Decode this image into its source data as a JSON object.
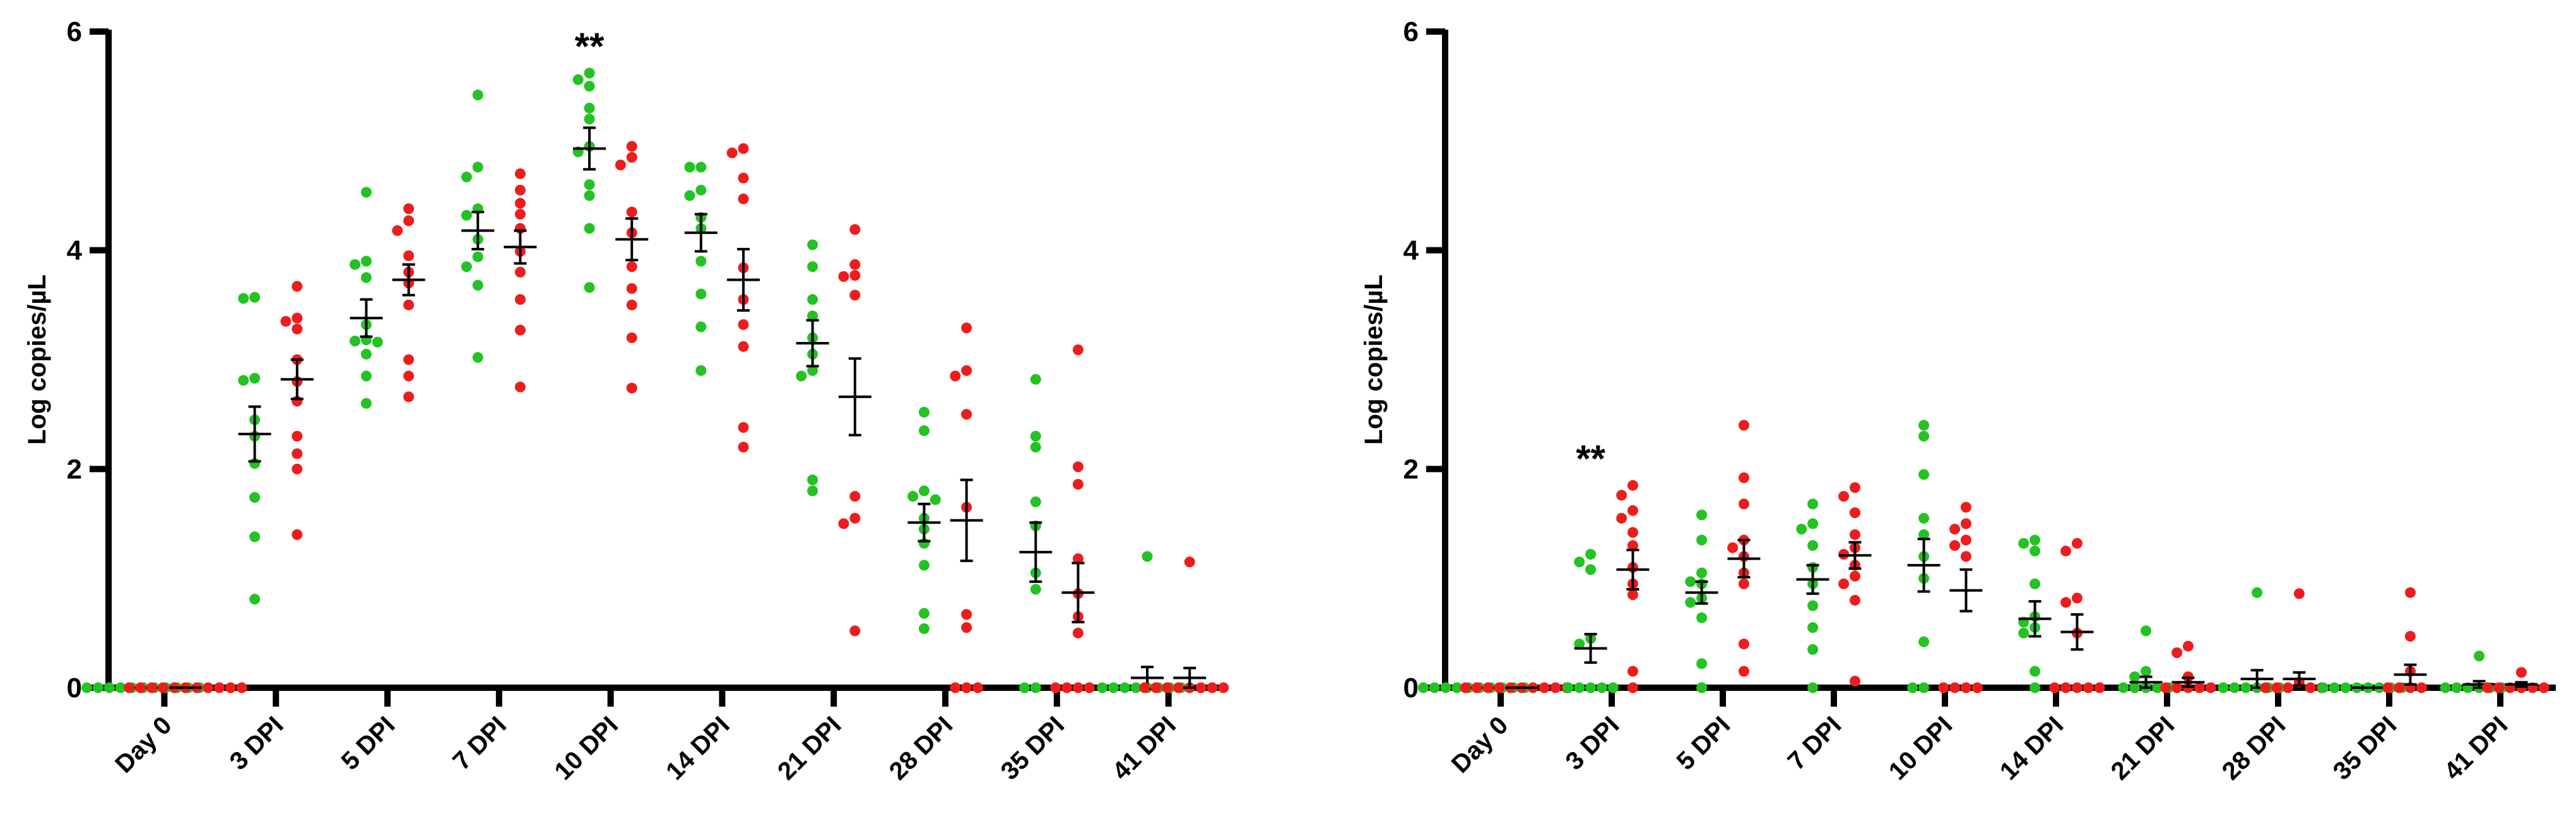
{
  "colors": {
    "green": "#22c322",
    "red": "#ee1c1c",
    "axis": "#000000"
  },
  "chart_data": [
    {
      "type": "scatter",
      "title": "",
      "ylabel": "Log copies/µL",
      "xlabel": "",
      "ylim": [
        0,
        6
      ],
      "yticks": [
        0,
        2,
        4,
        6
      ],
      "categories": [
        "Day 0",
        "3 DPI",
        "5 DPI",
        "7 DPI",
        "10 DPI",
        "14 DPI",
        "21 DPI",
        "28 DPI",
        "35 DPI",
        "41 DPI"
      ],
      "significance": [
        {
          "category": "10 DPI",
          "label": "**"
        }
      ],
      "series": [
        {
          "name": "green",
          "means": [
            0,
            2.32,
            3.38,
            4.18,
            4.93,
            4.16,
            3.15,
            1.51,
            1.24,
            0.09
          ],
          "sems": [
            0,
            0.25,
            0.17,
            0.17,
            0.19,
            0.17,
            0.21,
            0.17,
            0.27,
            0.1
          ],
          "points": [
            [
              0,
              0,
              0,
              0,
              0,
              0,
              0,
              0,
              0,
              0,
              0,
              0
            ],
            [
              3.57,
              3.56,
              2.83,
              2.81,
              2.45,
              2.3,
              2.05,
              1.74,
              1.38,
              0.81
            ],
            [
              4.53,
              3.9,
              3.87,
              3.75,
              3.32,
              3.18,
              3.17,
              3.16,
              3.05,
              2.85,
              2.6
            ],
            [
              5.42,
              4.76,
              4.67,
              4.38,
              4.32,
              4.1,
              3.94,
              3.85,
              3.68,
              3.02
            ],
            [
              5.62,
              5.56,
              5.5,
              5.3,
              5.2,
              4.95,
              4.9,
              4.6,
              4.5,
              4.2,
              3.66
            ],
            [
              4.76,
              4.76,
              4.55,
              4.5,
              4.3,
              4.2,
              3.9,
              3.6,
              3.3,
              2.9
            ],
            [
              4.05,
              3.85,
              3.55,
              3.4,
              3.2,
              3.05,
              2.9,
              2.85,
              1.9,
              1.8
            ],
            [
              2.52,
              2.35,
              1.8,
              1.75,
              1.72,
              1.55,
              1.45,
              1.32,
              1.12,
              0.68,
              0.54
            ],
            [
              2.82,
              2.3,
              2.2,
              1.7,
              1.48,
              1.05,
              0.9,
              0,
              0
            ],
            [
              1.2,
              0,
              0,
              0,
              0,
              0,
              0,
              0,
              0
            ]
          ]
        },
        {
          "name": "red",
          "means": [
            0,
            2.82,
            3.73,
            4.03,
            4.1,
            3.73,
            2.66,
            1.53,
            0.87,
            0.09
          ],
          "sems": [
            0,
            0.18,
            0.14,
            0.15,
            0.19,
            0.28,
            0.35,
            0.37,
            0.27,
            0.09
          ],
          "points": [
            [
              0,
              0,
              0,
              0,
              0,
              0,
              0,
              0,
              0,
              0,
              0,
              0
            ],
            [
              3.67,
              3.38,
              3.35,
              3.28,
              3.0,
              2.8,
              2.62,
              2.3,
              2.14,
              2.0,
              1.4
            ],
            [
              4.38,
              4.27,
              4.18,
              3.95,
              3.8,
              3.7,
              3.5,
              3.0,
              2.85,
              2.66
            ],
            [
              4.7,
              4.55,
              4.43,
              4.33,
              4.2,
              3.99,
              3.8,
              3.55,
              3.27,
              2.75
            ],
            [
              4.95,
              4.85,
              4.78,
              4.35,
              4.16,
              3.85,
              3.65,
              3.5,
              3.2,
              2.74
            ],
            [
              4.93,
              4.89,
              4.66,
              4.47,
              3.84,
              3.55,
              3.32,
              3.12,
              2.38,
              2.2
            ],
            [
              4.19,
              3.87,
              3.77,
              3.76,
              3.59,
              1.75,
              1.55,
              1.5,
              0.52
            ],
            [
              3.29,
              2.9,
              2.85,
              2.5,
              1.65,
              0.67,
              0.55,
              0,
              0,
              0
            ],
            [
              3.09,
              2.02,
              1.86,
              1.18,
              0.86,
              0.65,
              0.5,
              0,
              0,
              0,
              0
            ],
            [
              1.15,
              0,
              0,
              0,
              0,
              0,
              0,
              0,
              0
            ]
          ]
        }
      ]
    },
    {
      "type": "scatter",
      "title": "",
      "ylabel": "Log copies/µL",
      "xlabel": "",
      "ylim": [
        0,
        6
      ],
      "yticks": [
        0,
        2,
        4,
        6
      ],
      "categories": [
        "Day 0",
        "3 DPI",
        "5 DPI",
        "7 DPI",
        "10 DPI",
        "14 DPI",
        "21 DPI",
        "28 DPI",
        "35 DPI",
        "41 DPI"
      ],
      "significance": [
        {
          "category": "3 DPI",
          "label": "**"
        }
      ],
      "series": [
        {
          "name": "green",
          "means": [
            0,
            0.36,
            0.87,
            0.99,
            1.12,
            0.63,
            0.05,
            0.08,
            0,
            0.03
          ],
          "sems": [
            0,
            0.13,
            0.1,
            0.13,
            0.24,
            0.16,
            0.05,
            0.08,
            0,
            0.03
          ],
          "points": [
            [
              0,
              0,
              0,
              0,
              0,
              0,
              0,
              0,
              0,
              0
            ],
            [
              1.22,
              1.15,
              1.08,
              0.45,
              0.4,
              0,
              0,
              0,
              0,
              0
            ],
            [
              1.58,
              1.35,
              1.05,
              0.97,
              0.95,
              0.82,
              0.78,
              0.64,
              0.22,
              0
            ],
            [
              1.68,
              1.5,
              1.45,
              1.3,
              1.1,
              0.95,
              0.75,
              0.55,
              0.35,
              0
            ],
            [
              2.4,
              2.3,
              1.95,
              1.55,
              1.4,
              1.2,
              1.0,
              0.42,
              0,
              0
            ],
            [
              1.35,
              1.32,
              1.25,
              0.95,
              0.65,
              0.6,
              0.55,
              0.5,
              0.15,
              0
            ],
            [
              0.52,
              0.15,
              0.1,
              0,
              0,
              0,
              0,
              0
            ],
            [
              0.87,
              0,
              0,
              0,
              0,
              0,
              0
            ],
            [
              0,
              0,
              0,
              0,
              0,
              0,
              0,
              0
            ],
            [
              0.29,
              0,
              0,
              0,
              0,
              0,
              0
            ]
          ]
        },
        {
          "name": "red",
          "means": [
            0,
            1.08,
            1.18,
            1.21,
            0.89,
            0.51,
            0.05,
            0.08,
            0.12,
            0.03
          ],
          "sems": [
            0,
            0.18,
            0.17,
            0.12,
            0.19,
            0.16,
            0.04,
            0.06,
            0.09,
            0.02
          ],
          "points": [
            [
              0,
              0,
              0,
              0,
              0,
              0,
              0,
              0,
              0,
              0
            ],
            [
              1.85,
              1.76,
              1.62,
              1.55,
              1.42,
              1.3,
              1.1,
              0.95,
              0.85,
              0.15,
              0
            ],
            [
              2.4,
              1.92,
              1.68,
              1.35,
              1.28,
              1.2,
              1.05,
              0.95,
              0.4,
              0.15
            ],
            [
              1.83,
              1.75,
              1.6,
              1.4,
              1.28,
              1.22,
              1.12,
              1.02,
              0.95,
              0.8,
              0.06
            ],
            [
              1.65,
              1.5,
              1.45,
              1.35,
              1.3,
              1.2,
              0,
              0,
              0,
              0
            ],
            [
              1.32,
              1.25,
              0.82,
              0.78,
              0.5,
              0,
              0,
              0,
              0,
              0
            ],
            [
              0.38,
              0.32,
              0.1,
              0,
              0,
              0,
              0,
              0
            ],
            [
              0.86,
              0.05,
              0,
              0,
              0,
              0,
              0
            ],
            [
              0.87,
              0.47,
              0.15,
              0,
              0,
              0,
              0
            ],
            [
              0.14,
              0,
              0,
              0,
              0,
              0,
              0
            ]
          ]
        }
      ]
    }
  ]
}
